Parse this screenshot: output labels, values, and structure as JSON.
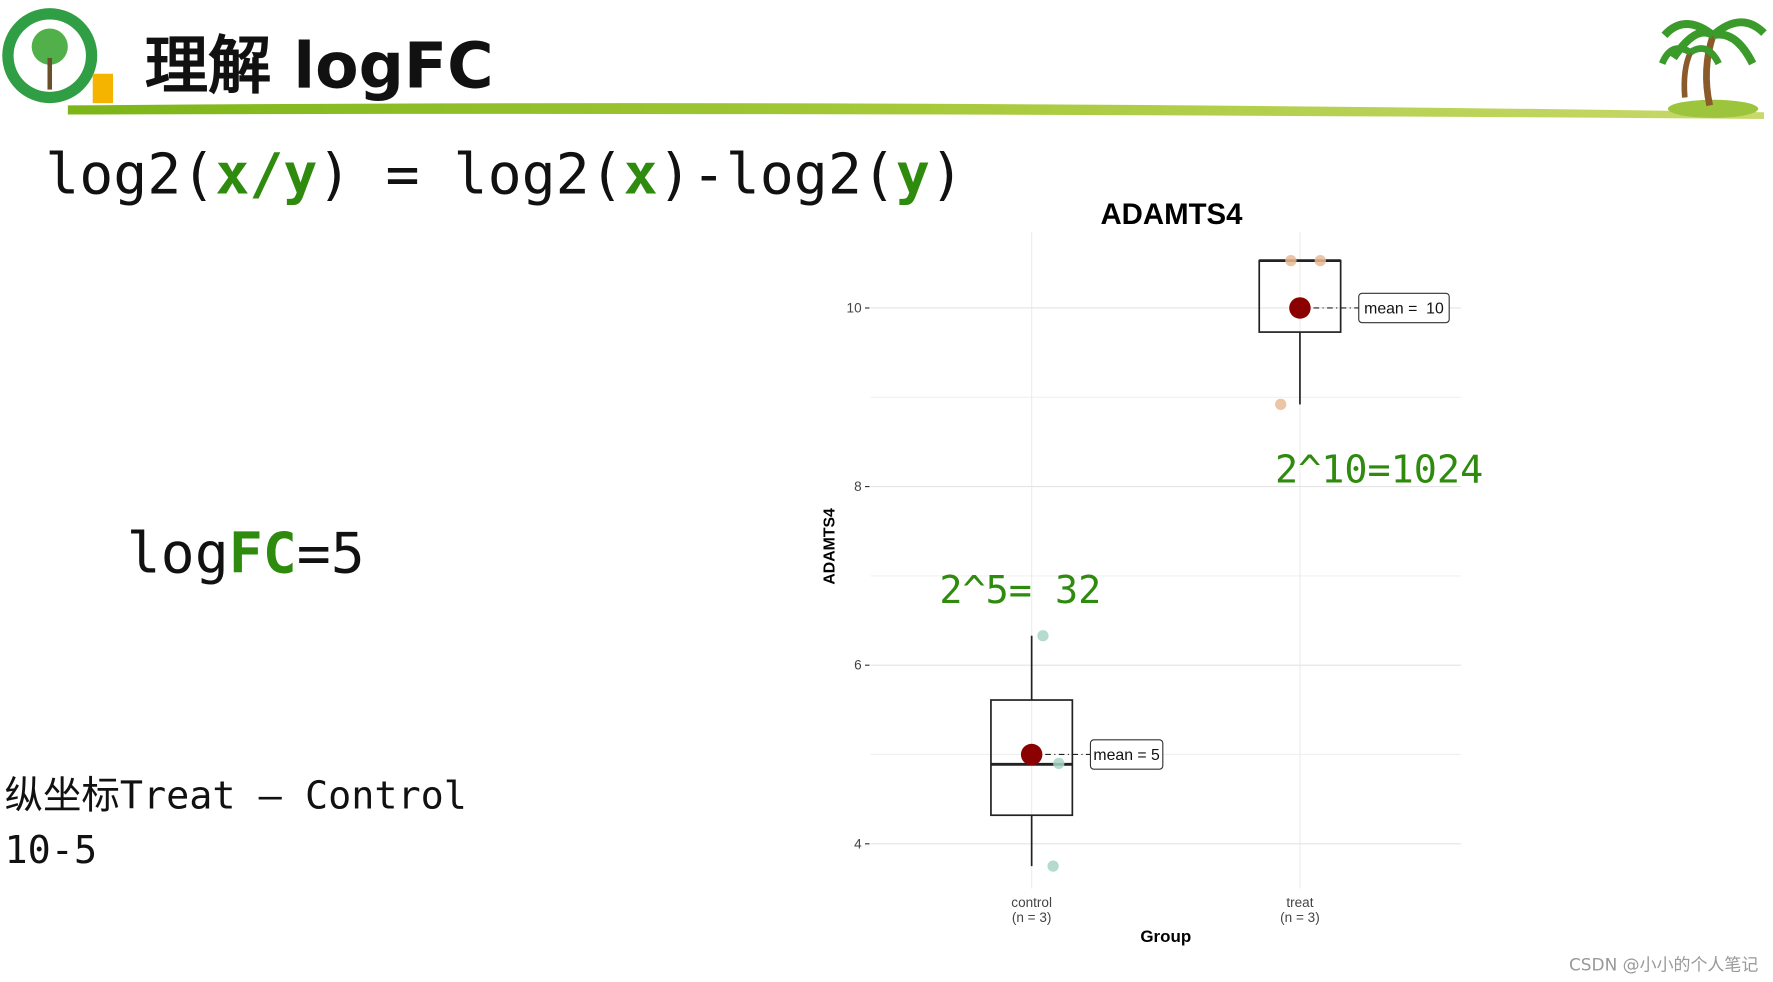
{
  "slide": {
    "title": "理解 logFC",
    "formula": [
      "log2(",
      "x/y",
      ") = log2(",
      "x",
      ")-log2(",
      "y",
      ")"
    ],
    "logfc": [
      "log",
      "FC",
      "=5"
    ],
    "note_line1": "纵坐标Treat – Control",
    "note_line2": "10-5",
    "watermark": "CSDN @小小的个人笔记"
  },
  "chart_data": {
    "type": "box",
    "title": "ADAMTS4",
    "x_label": "Group",
    "y_label": "ADAMTS4",
    "categories": [
      "control",
      "treat"
    ],
    "category_notes": [
      "(n = 3)",
      "(n = 3)"
    ],
    "ylim": [
      3.5,
      10.85
    ],
    "yticks": [
      4,
      6,
      8,
      10
    ],
    "y_minor_grid": [
      5,
      7,
      9
    ],
    "grid": true,
    "boxes": [
      {
        "min": 3.75,
        "q1": 4.32,
        "median": 4.89,
        "q3": 5.61,
        "max": 6.33,
        "mean": 5,
        "mean_label": "mean = 5",
        "points": [
          6.33,
          4.9,
          3.75
        ],
        "color": "#a8d5c5"
      },
      {
        "min": 8.92,
        "q1": 9.73,
        "median": 10.53,
        "q3": 10.53,
        "max": 10.53,
        "mean": 10,
        "mean_label": "mean =  10",
        "points": [
          10.53,
          10.53,
          8.92
        ],
        "color": "#e9bb94"
      }
    ],
    "mean_color": "#8b0000",
    "annotations": [
      {
        "text": "2^5= 32",
        "category": 0,
        "y": 6.85
      },
      {
        "text": "2^10=1024",
        "category": 1,
        "y": 8.2
      }
    ],
    "annotation_color": "#2e8b0e"
  }
}
